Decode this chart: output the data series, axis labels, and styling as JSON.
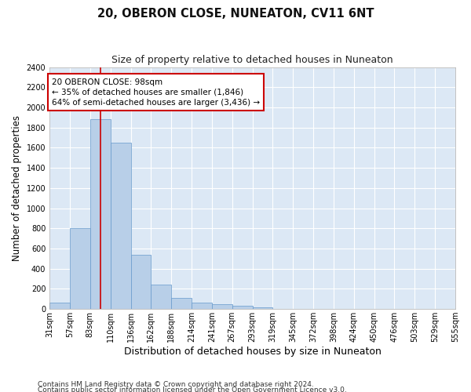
{
  "title": "20, OBERON CLOSE, NUNEATON, CV11 6NT",
  "subtitle": "Size of property relative to detached houses in Nuneaton",
  "xlabel": "Distribution of detached houses by size in Nuneaton",
  "ylabel": "Number of detached properties",
  "bin_labels": [
    "31sqm",
    "57sqm",
    "83sqm",
    "110sqm",
    "136sqm",
    "162sqm",
    "188sqm",
    "214sqm",
    "241sqm",
    "267sqm",
    "293sqm",
    "319sqm",
    "345sqm",
    "372sqm",
    "398sqm",
    "424sqm",
    "450sqm",
    "476sqm",
    "503sqm",
    "529sqm",
    "555sqm"
  ],
  "bar_heights": [
    60,
    800,
    1880,
    1650,
    535,
    240,
    110,
    60,
    45,
    30,
    20,
    0,
    0,
    0,
    0,
    0,
    0,
    0,
    0,
    0
  ],
  "bar_color": "#b8cfe8",
  "bar_edge_color": "#6699cc",
  "property_bin_index": 2.5,
  "property_line_color": "#cc0000",
  "annotation_text": "20 OBERON CLOSE: 98sqm\n← 35% of detached houses are smaller (1,846)\n64% of semi-detached houses are larger (3,436) →",
  "annotation_box_color": "#ffffff",
  "annotation_box_edge_color": "#cc0000",
  "ylim": [
    0,
    2400
  ],
  "yticks": [
    0,
    200,
    400,
    600,
    800,
    1000,
    1200,
    1400,
    1600,
    1800,
    2000,
    2200,
    2400
  ],
  "footer_line1": "Contains HM Land Registry data © Crown copyright and database right 2024.",
  "footer_line2": "Contains public sector information licensed under the Open Government Licence v3.0.",
  "background_color": "#dce8f5",
  "grid_color": "#ffffff",
  "title_fontsize": 10.5,
  "subtitle_fontsize": 9,
  "ylabel_fontsize": 8.5,
  "xlabel_fontsize": 9,
  "tick_fontsize": 7,
  "annotation_fontsize": 7.5,
  "footer_fontsize": 6.5
}
